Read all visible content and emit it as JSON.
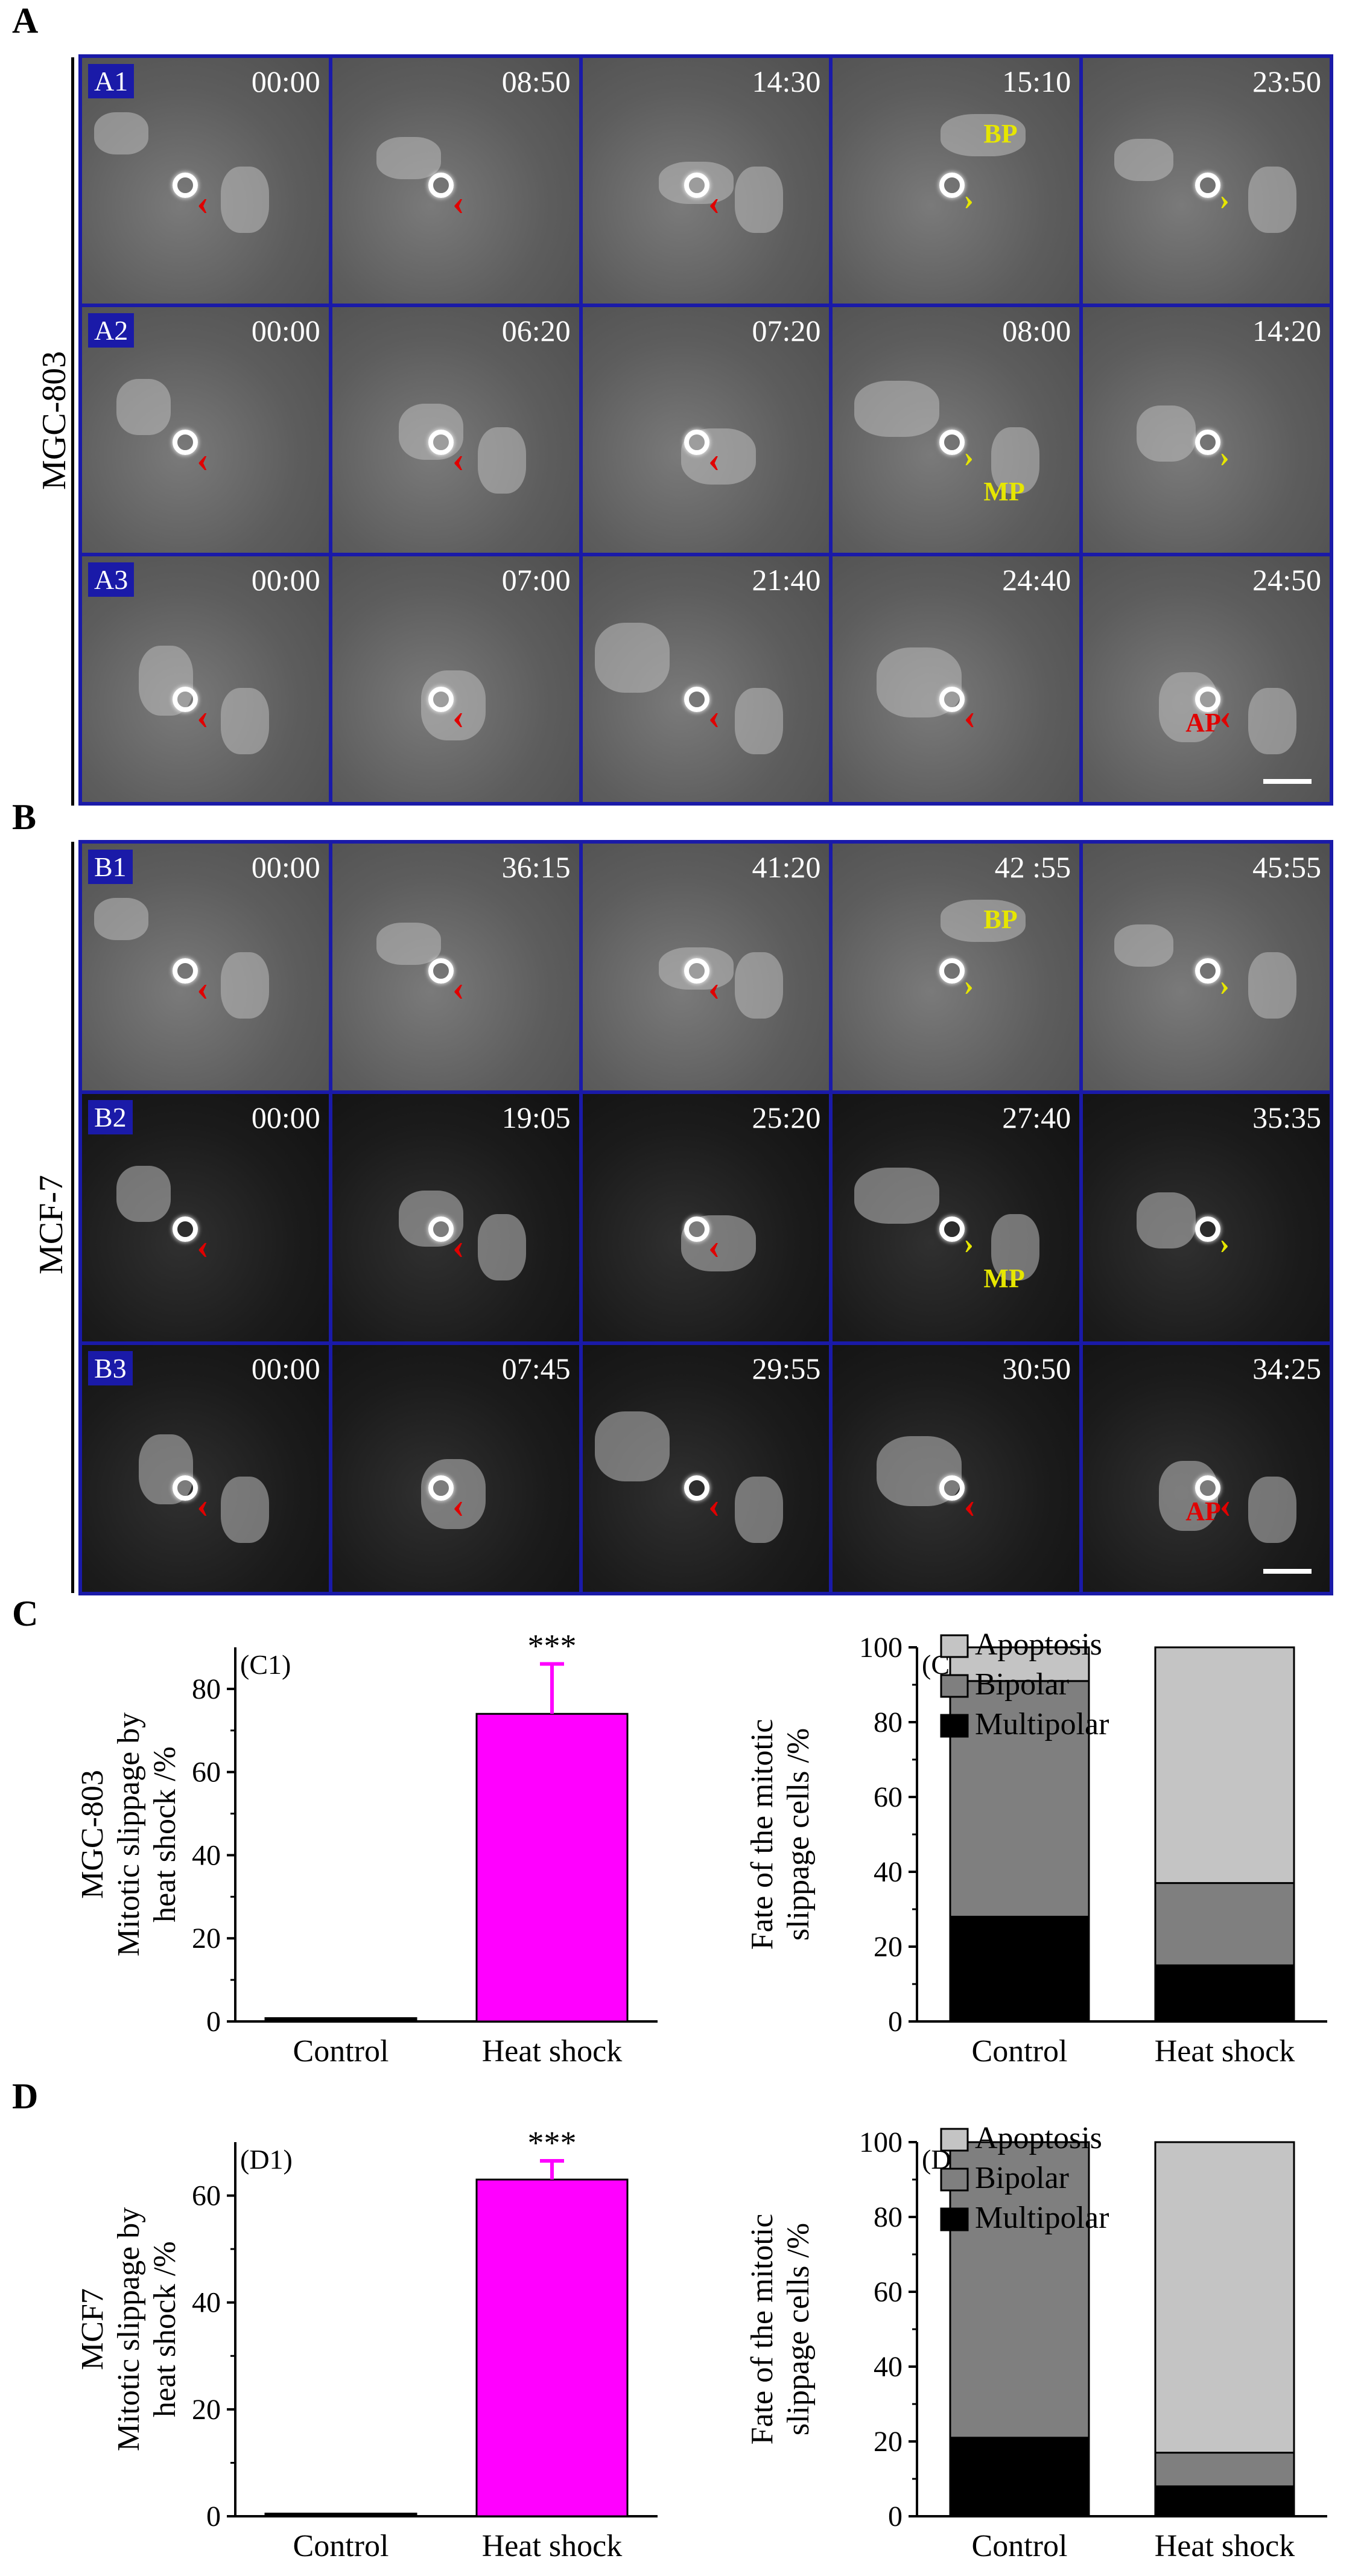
{
  "panels": {
    "A": {
      "letter": "A",
      "row_label": "MGC-803",
      "rows": [
        {
          "tag": "A1",
          "times": [
            "00:00",
            "08:50",
            "14:30",
            "15:10",
            "23:50"
          ],
          "label": {
            "col": 3,
            "text": "BP"
          }
        },
        {
          "tag": "A2",
          "times": [
            "00:00",
            "06:20",
            "07:20",
            "08:00",
            "14:20"
          ],
          "label": {
            "col": 3,
            "text": "MP"
          }
        },
        {
          "tag": "A3",
          "times": [
            "00:00",
            "07:00",
            "21:40",
            "24:40",
            "24:50"
          ],
          "label": {
            "col": 4,
            "text": "AP"
          }
        }
      ]
    },
    "B": {
      "letter": "B",
      "row_label": "MCF-7",
      "rows": [
        {
          "tag": "B1",
          "times": [
            "00:00",
            "36:15",
            "41:20",
            "42 :55",
            "45:55"
          ],
          "label": {
            "col": 3,
            "text": "BP"
          }
        },
        {
          "tag": "B2",
          "times": [
            "00:00",
            "19:05",
            "25:20",
            "27:40",
            "35:35"
          ],
          "label": {
            "col": 3,
            "text": "MP"
          }
        },
        {
          "tag": "B3",
          "times": [
            "00:00",
            "07:45",
            "29:55",
            "30:50",
            "34:25"
          ],
          "label": {
            "col": 4,
            "text": "AP"
          }
        }
      ]
    },
    "C": {
      "letter": "C"
    },
    "D": {
      "letter": "D"
    }
  },
  "colors": {
    "bar": "#ff00ff",
    "apoptosis": "#c4c4c4",
    "bipolar": "#7f7f7f",
    "multipolar": "#000000",
    "grid_border": "#1a1aa8"
  },
  "chart_data": [
    {
      "id": "C1",
      "type": "bar",
      "panel_label": "(C1)",
      "categories": [
        "Control",
        "Heat shock"
      ],
      "values": [
        0.8,
        74
      ],
      "errors": [
        0.3,
        12
      ],
      "significance": "***",
      "ylabel_lines": [
        "MGC-803",
        "Mitotic slippage by",
        "heat shock /%"
      ],
      "ylim": [
        0,
        90
      ],
      "yticks": [
        0,
        20,
        40,
        60,
        80
      ]
    },
    {
      "id": "C2",
      "type": "bar",
      "stacked": true,
      "panel_label": "(C2)",
      "categories": [
        "Control",
        "Heat shock"
      ],
      "series": [
        {
          "name": "Multipolar",
          "values": [
            28,
            15
          ]
        },
        {
          "name": "Bipolar",
          "values": [
            63,
            22
          ]
        },
        {
          "name": "Apoptosis",
          "values": [
            9,
            63
          ]
        }
      ],
      "ylabel_lines": [
        "Fate of the mitotic",
        "slippage cells /%"
      ],
      "ylim": [
        0,
        100
      ],
      "yticks": [
        0,
        20,
        40,
        60,
        80,
        100
      ],
      "legend": "top-left"
    },
    {
      "id": "D1",
      "type": "bar",
      "panel_label": "(D1)",
      "categories": [
        "Control",
        "Heat shock"
      ],
      "values": [
        0.5,
        63
      ],
      "errors": [
        0.2,
        3.5
      ],
      "significance": "***",
      "ylabel_lines": [
        "MCF7",
        "Mitotic slippage by",
        "heat shock /%"
      ],
      "ylim": [
        0,
        70
      ],
      "yticks": [
        0,
        20,
        40,
        60
      ]
    },
    {
      "id": "D2",
      "type": "bar",
      "stacked": true,
      "panel_label": "(D2)",
      "categories": [
        "Control",
        "Heat shock"
      ],
      "series": [
        {
          "name": "Multipolar",
          "values": [
            21,
            8
          ]
        },
        {
          "name": "Bipolar",
          "values": [
            79,
            9
          ]
        },
        {
          "name": "Apoptosis",
          "values": [
            0,
            83
          ]
        }
      ],
      "ylabel_lines": [
        "Fate of the mitotic",
        "slippage cells /%"
      ],
      "ylim": [
        0,
        100
      ],
      "yticks": [
        0,
        20,
        40,
        60,
        80,
        100
      ],
      "legend": "top-left"
    }
  ]
}
